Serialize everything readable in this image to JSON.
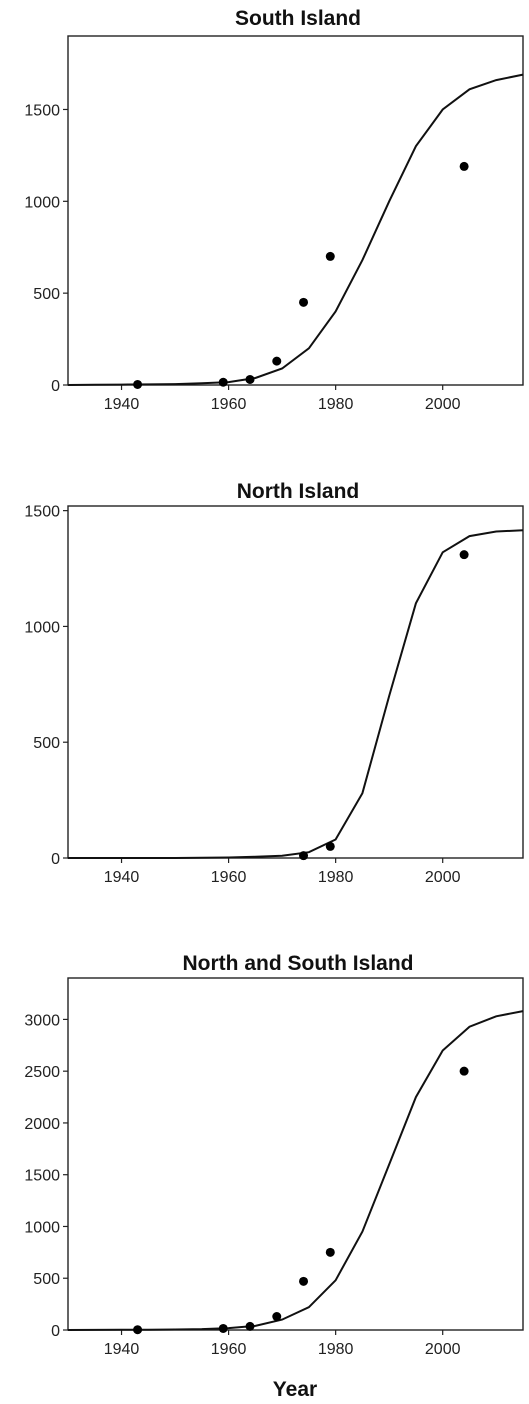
{
  "x_axis_label": "Year",
  "chart_data": [
    {
      "type": "scatter",
      "title": "South Island",
      "xlim": [
        1930,
        2015
      ],
      "ylim": [
        0,
        1900
      ],
      "x_ticks": [
        1940,
        1960,
        1980,
        2000
      ],
      "y_ticks": [
        0,
        500,
        1000,
        1500
      ],
      "points": {
        "x": [
          1943,
          1959,
          1964,
          1969,
          1974,
          1979,
          2004
        ],
        "y": [
          3,
          15,
          30,
          130,
          450,
          700,
          1190
        ]
      },
      "curve": {
        "x": [
          1930,
          1935,
          1940,
          1945,
          1950,
          1955,
          1960,
          1965,
          1970,
          1975,
          1980,
          1985,
          1990,
          1995,
          2000,
          2005,
          2010,
          2015
        ],
        "y": [
          0,
          1,
          2,
          3,
          5,
          9,
          16,
          38,
          90,
          200,
          400,
          680,
          1000,
          1300,
          1500,
          1610,
          1660,
          1690
        ]
      }
    },
    {
      "type": "scatter",
      "title": "North Island",
      "xlim": [
        1930,
        2015
      ],
      "ylim": [
        0,
        1520
      ],
      "x_ticks": [
        1940,
        1960,
        1980,
        2000
      ],
      "y_ticks": [
        0,
        500,
        1000,
        1500
      ],
      "points": {
        "x": [
          1974,
          1979,
          2004
        ],
        "y": [
          10,
          50,
          1310
        ]
      },
      "curve": {
        "x": [
          1930,
          1940,
          1950,
          1960,
          1965,
          1970,
          1975,
          1980,
          1985,
          1990,
          1995,
          2000,
          2005,
          2010,
          2015
        ],
        "y": [
          0,
          0,
          0,
          2,
          5,
          10,
          25,
          80,
          280,
          700,
          1100,
          1320,
          1390,
          1410,
          1415
        ]
      }
    },
    {
      "type": "scatter",
      "title": "North and South Island",
      "xlim": [
        1930,
        2015
      ],
      "ylim": [
        0,
        3400
      ],
      "x_ticks": [
        1940,
        1960,
        1980,
        2000
      ],
      "y_ticks": [
        0,
        500,
        1000,
        1500,
        2000,
        2500,
        3000
      ],
      "points": {
        "x": [
          1943,
          1959,
          1964,
          1969,
          1974,
          1979,
          2004
        ],
        "y": [
          3,
          15,
          35,
          130,
          470,
          750,
          2500
        ]
      },
      "curve": {
        "x": [
          1930,
          1935,
          1940,
          1945,
          1950,
          1955,
          1960,
          1965,
          1970,
          1975,
          1980,
          1985,
          1990,
          1995,
          2000,
          2005,
          2010,
          2015
        ],
        "y": [
          0,
          1,
          2,
          3,
          5,
          9,
          18,
          40,
          100,
          220,
          480,
          950,
          1600,
          2250,
          2700,
          2930,
          3030,
          3080
        ]
      }
    }
  ]
}
